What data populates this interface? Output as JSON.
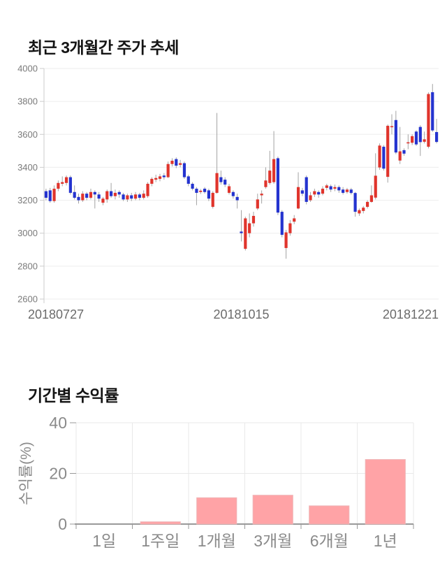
{
  "page_background": "#ffffff",
  "chart_data": [
    {
      "type": "candlestick",
      "title": "최근 3개월간 주가 추세",
      "xlabel": "",
      "ylabel": "",
      "x_labels": [
        "20180727",
        "20181015",
        "20181221"
      ],
      "y_ticks": [
        4000,
        3800,
        3600,
        3400,
        3200,
        3000,
        2800,
        2600
      ],
      "ylim": [
        2600,
        4000
      ],
      "grid": true,
      "up_color": "#e0342c",
      "down_color": "#2433cf",
      "wick_color": "#a3a3a3",
      "grid_color": "#ededed",
      "axis_color": "#cccccc",
      "tick_label_color": "#7a7a7a",
      "date_label_color": "#6b6b6b",
      "candles_format": [
        "open",
        "close",
        "high",
        "low"
      ],
      "candles": [
        [
          3255,
          3215,
          3270,
          3200
        ],
        [
          3260,
          3195,
          3275,
          3185
        ],
        [
          3195,
          3270,
          3290,
          3185
        ],
        [
          3270,
          3305,
          3320,
          3255
        ],
        [
          3300,
          3310,
          3345,
          3285
        ],
        [
          3305,
          3340,
          3350,
          3290
        ],
        [
          3340,
          3245,
          3350,
          3235
        ],
        [
          3250,
          3215,
          3290,
          3205
        ],
        [
          3220,
          3200,
          3240,
          3180
        ],
        [
          3200,
          3240,
          3255,
          3190
        ],
        [
          3240,
          3215,
          3250,
          3200
        ],
        [
          3215,
          3250,
          3270,
          3205
        ],
        [
          3250,
          3235,
          3260,
          3150
        ],
        [
          3235,
          3210,
          3250,
          3190
        ],
        [
          3185,
          3210,
          3220,
          3170
        ],
        [
          3205,
          3255,
          3265,
          3185
        ],
        [
          3255,
          3225,
          3305,
          3215
        ],
        [
          3225,
          3245,
          3265,
          3205
        ],
        [
          3250,
          3235,
          3260,
          3215
        ],
        [
          3235,
          3205,
          3245,
          3195
        ],
        [
          3205,
          3230,
          3240,
          3190
        ],
        [
          3230,
          3210,
          3245,
          3195
        ],
        [
          3210,
          3235,
          3250,
          3200
        ],
        [
          3235,
          3215,
          3245,
          3200
        ],
        [
          3215,
          3240,
          3260,
          3205
        ],
        [
          3225,
          3300,
          3310,
          3215
        ],
        [
          3300,
          3330,
          3340,
          3285
        ],
        [
          3325,
          3335,
          3355,
          3310
        ],
        [
          3330,
          3345,
          3360,
          3315
        ],
        [
          3350,
          3340,
          3365,
          3325
        ],
        [
          3340,
          3420,
          3435,
          3335
        ],
        [
          3420,
          3440,
          3455,
          3405
        ],
        [
          3450,
          3410,
          3460,
          3395
        ],
        [
          3415,
          3425,
          3445,
          3400
        ],
        [
          3425,
          3340,
          3435,
          3330
        ],
        [
          3345,
          3300,
          3355,
          3285
        ],
        [
          3300,
          3270,
          3310,
          3260
        ],
        [
          3270,
          3245,
          3280,
          3170
        ],
        [
          3250,
          3258,
          3268,
          3238
        ],
        [
          3270,
          3250,
          3280,
          3240
        ],
        [
          3260,
          3210,
          3270,
          3195
        ],
        [
          3160,
          3245,
          3255,
          3150
        ],
        [
          3245,
          3365,
          3730,
          3240
        ],
        [
          3340,
          3310,
          3380,
          3295
        ],
        [
          3325,
          3295,
          3340,
          3280
        ],
        [
          3245,
          3285,
          3300,
          3235
        ],
        [
          3250,
          3225,
          3260,
          3210
        ],
        [
          3220,
          3200,
          3240,
          3150
        ],
        [
          3010,
          3000,
          3140,
          2950
        ],
        [
          2905,
          3090,
          3100,
          2895
        ],
        [
          3000,
          3060,
          3120,
          2975
        ],
        [
          3060,
          3105,
          3130,
          3040
        ],
        [
          3150,
          3205,
          3240,
          3140
        ],
        [
          3230,
          3240,
          3260,
          3180
        ],
        [
          3280,
          3320,
          3400,
          3270
        ],
        [
          3305,
          3380,
          3500,
          3295
        ],
        [
          3310,
          3450,
          3620,
          3300
        ],
        [
          3455,
          3125,
          3465,
          3110
        ],
        [
          3130,
          2990,
          3140,
          2975
        ],
        [
          2910,
          3005,
          3020,
          2845
        ],
        [
          3000,
          3060,
          3080,
          2985
        ],
        [
          3070,
          3090,
          3110,
          3055
        ],
        [
          3150,
          3280,
          3370,
          3145
        ],
        [
          3260,
          3240,
          3275,
          3225
        ],
        [
          3340,
          3190,
          3350,
          3175
        ],
        [
          3200,
          3230,
          3250,
          3190
        ],
        [
          3235,
          3255,
          3270,
          3220
        ],
        [
          3250,
          3235,
          3260,
          3215
        ],
        [
          3240,
          3270,
          3285,
          3230
        ],
        [
          3275,
          3290,
          3300,
          3260
        ],
        [
          3285,
          3265,
          3295,
          3250
        ],
        [
          3270,
          3280,
          3295,
          3255
        ],
        [
          3280,
          3260,
          3290,
          3245
        ],
        [
          3265,
          3245,
          3280,
          3235
        ],
        [
          3250,
          3265,
          3275,
          3240
        ],
        [
          3265,
          3244,
          3275,
          3235
        ],
        [
          3244,
          3130,
          3250,
          3100
        ],
        [
          3120,
          3140,
          3150,
          3105
        ],
        [
          3135,
          3155,
          3165,
          3120
        ],
        [
          3160,
          3190,
          3200,
          3150
        ],
        [
          3190,
          3230,
          3290,
          3185
        ],
        [
          3216,
          3349,
          3485,
          3205
        ],
        [
          3399,
          3532,
          3545,
          3385
        ],
        [
          3525,
          3392,
          3535,
          3380
        ],
        [
          3342,
          3652,
          3660,
          3307
        ],
        [
          3645,
          3650,
          3722,
          3600
        ],
        [
          3687,
          3490,
          3743,
          3480
        ],
        [
          3441,
          3497,
          3645,
          3420
        ],
        [
          3504,
          3483,
          3515,
          3470
        ],
        [
          3549,
          3552,
          3600,
          3510
        ],
        [
          3549,
          3589,
          3600,
          3535
        ],
        [
          3617,
          3539,
          3625,
          3530
        ],
        [
          3645,
          3553,
          3655,
          3469
        ],
        [
          3555,
          3570,
          3617,
          3545
        ],
        [
          3525,
          3845,
          3855,
          3515
        ],
        [
          3856,
          3624,
          3906,
          3615
        ],
        [
          3614,
          3554,
          3694,
          3545
        ]
      ]
    },
    {
      "type": "bar",
      "title": "기간별 수익률",
      "ylabel": "수익률(%)",
      "xlabel": "",
      "categories": [
        "1일",
        "1주일",
        "1개월",
        "3개월",
        "6개월",
        "1년"
      ],
      "values": [
        0,
        0.9,
        10.4,
        11.4,
        7.2,
        25.5
      ],
      "y_ticks": [
        40,
        20,
        0
      ],
      "ylim": [
        0,
        40
      ],
      "grid": true,
      "legend": "none",
      "bar_color": "#ffa3a6",
      "bar_border_color": "#eeb5b7",
      "grid_color": "#e9e9e9",
      "axis_color": "#999999",
      "tick_label_color": "#8a8a8a",
      "axis_title_color": "#8a8a8a"
    }
  ]
}
